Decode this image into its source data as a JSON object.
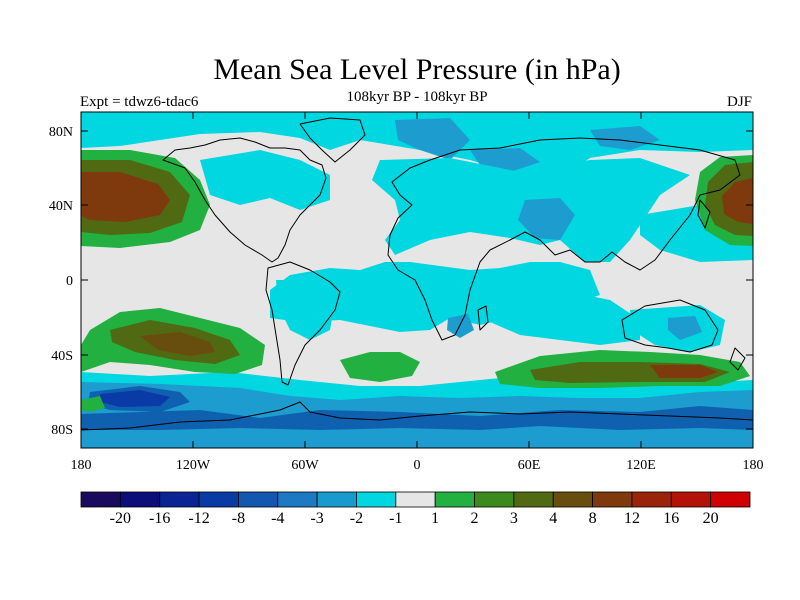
{
  "header": {
    "title": "Mean Sea Level Pressure (in hPa)",
    "subtitle": "108kyr BP - 108kyr BP",
    "left_label": "Expt = tdwz6-tdac6",
    "right_label": "DJF"
  },
  "axes": {
    "lat_labels": [
      "80N",
      "40N",
      "0",
      "40S",
      "80S"
    ],
    "lon_labels": [
      "180",
      "120W",
      "60W",
      "0",
      "60E",
      "120E",
      "180"
    ]
  },
  "colorbar": {
    "colors": [
      "#1a0a5e",
      "#0c0e7a",
      "#0a2496",
      "#0a3aa6",
      "#1258b0",
      "#1c79c2",
      "#179bce",
      "#00d7e0",
      "#e6e6e6",
      "#22b040",
      "#3c8a1e",
      "#4f6a12",
      "#674e0e",
      "#7e3a0c",
      "#9a240a",
      "#b41206",
      "#d00000"
    ],
    "labels": [
      "-20",
      "-16",
      "-12",
      "-8",
      "-4",
      "-3",
      "-2",
      "-1",
      "1",
      "2",
      "3",
      "4",
      "8",
      "12",
      "16",
      "20"
    ]
  },
  "palette": {
    "land_neutral": "#e6e6e6",
    "ocean_cyan": "#00d7e0",
    "mid_blue": "#1c9ccf",
    "deep_blue": "#1060b0",
    "green": "#22b040",
    "olive": "#4f6a12",
    "brown": "#7e3a0c",
    "coast": "#000000"
  }
}
